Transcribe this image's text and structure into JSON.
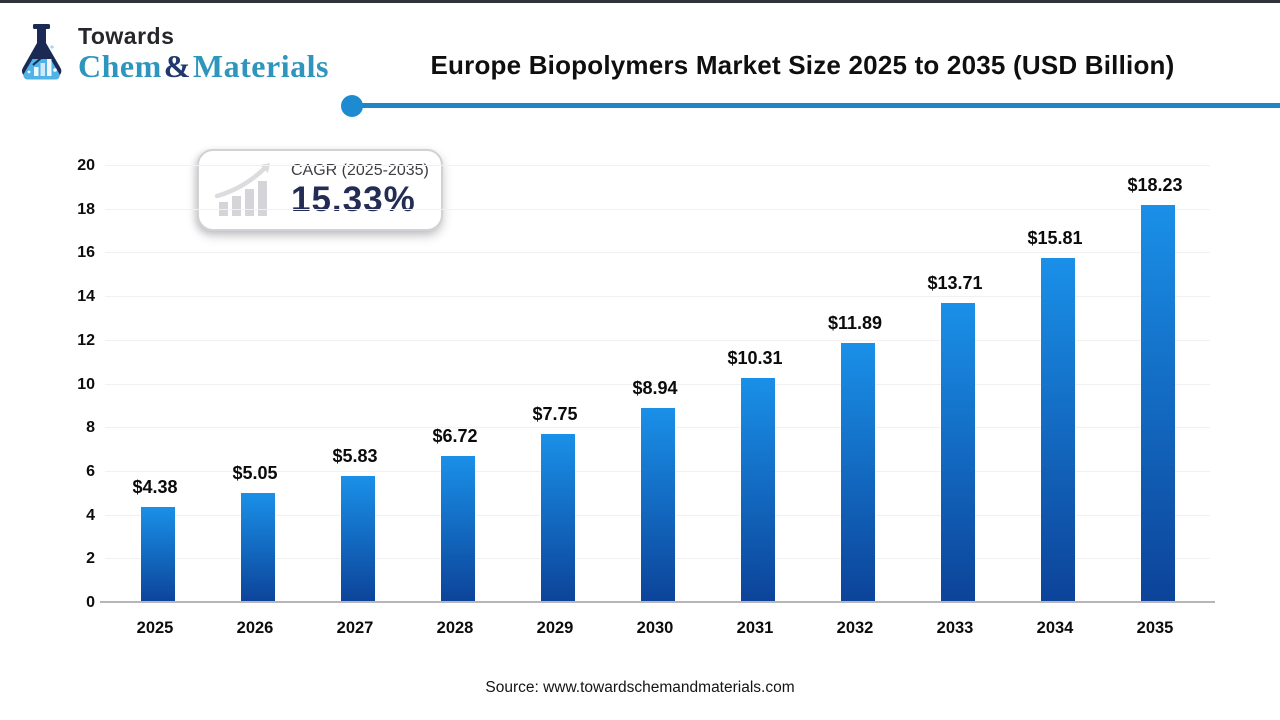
{
  "header": {
    "brand": {
      "towards": "Towards",
      "chem": "Chem",
      "amp": "&",
      "materials": "Materials"
    },
    "title": "Europe Biopolymers Market Size 2025 to 2035 (USD Billion)"
  },
  "cagr": {
    "label": "CAGR (2025-2035)",
    "value": "15.33%"
  },
  "chart_data": {
    "type": "bar",
    "title": "Europe Biopolymers Market Size 2025 to 2035 (USD Billion)",
    "categories": [
      "2025",
      "2026",
      "2027",
      "2028",
      "2029",
      "2030",
      "2031",
      "2032",
      "2033",
      "2034",
      "2035"
    ],
    "values": [
      4.38,
      5.05,
      5.83,
      6.72,
      7.75,
      8.94,
      10.31,
      11.89,
      13.71,
      15.81,
      18.23
    ],
    "data_labels": [
      "$4.38",
      "$5.05",
      "$5.83",
      "$6.72",
      "$7.75",
      "$8.94",
      "$10.31",
      "$11.89",
      "$13.71",
      "$15.81",
      "$18.23"
    ],
    "xlabel": "",
    "ylabel": "",
    "ylim": [
      0,
      20
    ],
    "ytick_step": 2,
    "grid": true,
    "legend": "none",
    "bar_color_top": "#1a90e8",
    "bar_color_bottom": "#0c4399"
  },
  "footer": {
    "source": "Source: www.towardschemandmaterials.com"
  },
  "colors": {
    "divider_blue": "#1e86c4",
    "dot_blue": "#1e8ad0",
    "navy": "#222c54",
    "logo_teal": "#2e96bd",
    "logo_amp_navy": "#20386e",
    "icon_gray": "#d5d5d9"
  }
}
